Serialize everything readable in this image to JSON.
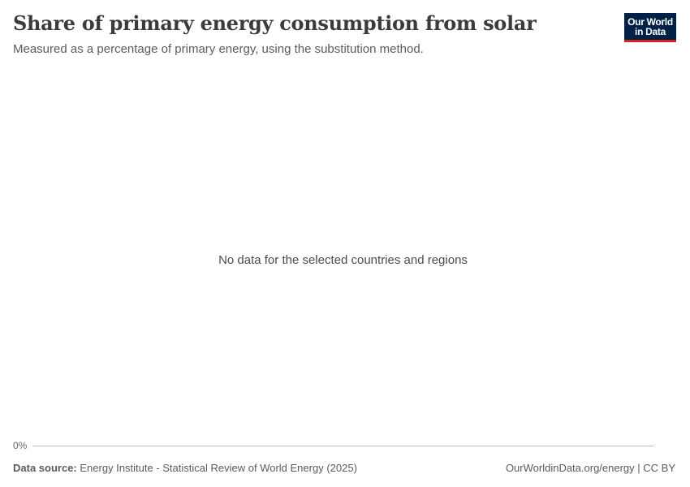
{
  "header": {
    "title": "Share of primary energy consumption from solar",
    "subtitle": "Measured as a percentage of primary energy, using the substitution method.",
    "logo": {
      "line1": "Our World",
      "line2": "in Data",
      "bg_color": "#002147",
      "accent_color": "#ce261e"
    }
  },
  "chart_data": {
    "type": "line",
    "title": "Share of primary energy consumption from solar",
    "subtitle": "Measured as a percentage of primary energy, using the substitution method.",
    "series": [],
    "y_ticks": [
      "0%"
    ],
    "message": "No data for the selected countries and regions"
  },
  "footer": {
    "source_label": "Data source:",
    "source_text": "Energy Institute - Statistical Review of World Energy (2025)",
    "credit": "OurWorldinData.org/energy | CC BY"
  }
}
